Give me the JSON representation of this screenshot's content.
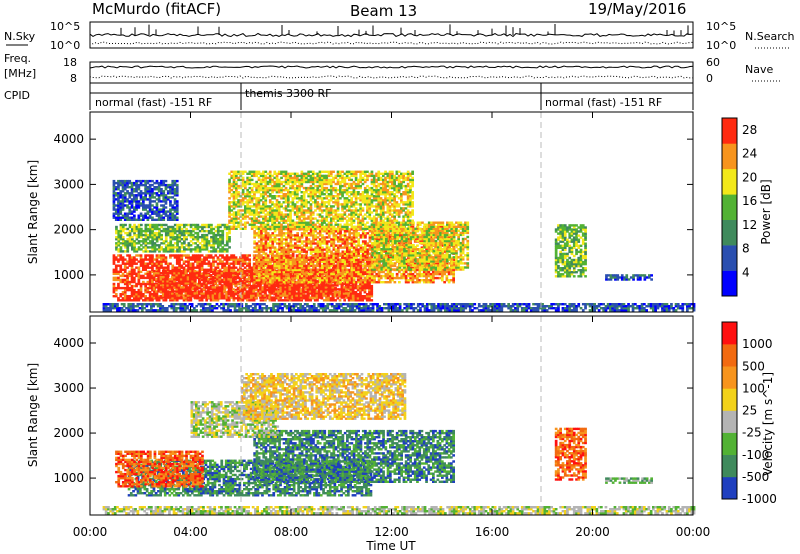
{
  "header": {
    "station": "McMurdo (fitACF)",
    "beam": "Beam 13",
    "date": "19/May/2016"
  },
  "status_panel": {
    "left_labels": [
      "N.Sky",
      "Freq.",
      "[MHz]",
      "CPID"
    ],
    "right_labels": [
      "N.Search",
      "Nave"
    ],
    "left_ticks_noise": [
      "10^5",
      "10^0"
    ],
    "right_ticks_noise": [
      "10^5",
      "10^0"
    ],
    "left_ticks_freq": [
      "18",
      "8"
    ],
    "right_ticks_nave": [
      "60",
      "0"
    ],
    "cpid_segments": [
      {
        "label": "normal (fast) -151 RF",
        "start_hr": 0,
        "end_hr": 6
      },
      {
        "label": "themis 3300 RF",
        "start_hr": 6,
        "end_hr": 18
      },
      {
        "label": "normal (fast) -151 RF",
        "start_hr": 18,
        "end_hr": 24
      }
    ]
  },
  "chart_data": [
    {
      "type": "heatmap",
      "title": "",
      "xlabel": "Time UT",
      "ylabel": "Slant Range [km]",
      "xlim": [
        0,
        24
      ],
      "ylim": [
        180,
        4600
      ],
      "x_ticks": [
        "00:00",
        "04:00",
        "08:00",
        "12:00",
        "16:00",
        "20:00",
        "00:00"
      ],
      "y_ticks": [
        1000,
        2000,
        3000,
        4000
      ],
      "colorbar": {
        "label": "Power [dB]",
        "ticks": [
          4,
          8,
          12,
          16,
          20,
          24,
          28
        ],
        "range": [
          0,
          30
        ],
        "colors": [
          "#0000ff",
          "#2a4fb0",
          "#3f8a5c",
          "#52b234",
          "#f3e81a",
          "#f7941d",
          "#ff2a10"
        ]
      },
      "regions": [
        {
          "t": [
            0.9,
            11.2
          ],
          "r": [
            420,
            1450
          ],
          "level": 6
        },
        {
          "t": [
            2.5,
            10.5
          ],
          "r": [
            480,
            1100
          ],
          "level": 6
        },
        {
          "t": [
            6.5,
            14.5
          ],
          "r": [
            820,
            2050
          ],
          "level": 5
        },
        {
          "t": [
            11.2,
            15.0
          ],
          "r": [
            1100,
            2150
          ],
          "level": 4
        },
        {
          "t": [
            1.0,
            5.5
          ],
          "r": [
            1500,
            2100
          ],
          "level": 3
        },
        {
          "t": [
            5.5,
            12.8
          ],
          "r": [
            2000,
            3300
          ],
          "level": 4
        },
        {
          "t": [
            0.9,
            3.5
          ],
          "r": [
            2200,
            3100
          ],
          "level": 1
        },
        {
          "t": [
            18.5,
            19.7
          ],
          "r": [
            950,
            2100
          ],
          "level": 3
        },
        {
          "t": [
            20.5,
            22.3
          ],
          "r": [
            880,
            1000
          ],
          "level": 1
        },
        {
          "t": [
            0.5,
            24.0
          ],
          "r": [
            200,
            380
          ],
          "level": 1
        }
      ]
    },
    {
      "type": "heatmap",
      "title": "",
      "xlabel": "Time UT",
      "ylabel": "Slant Range [km]",
      "xlim": [
        0,
        24
      ],
      "ylim": [
        180,
        4600
      ],
      "x_ticks": [
        "00:00",
        "04:00",
        "08:00",
        "12:00",
        "16:00",
        "20:00",
        "00:00"
      ],
      "y_ticks": [
        1000,
        2000,
        3000,
        4000
      ],
      "colorbar": {
        "label": "Velocity [m s^-1]",
        "ticks": [
          "1000",
          "500",
          "100",
          "25",
          "-25",
          "-100",
          "-500",
          "-1000"
        ],
        "colors": [
          "#1f3fbf",
          "#3f8a5c",
          "#52b234",
          "#b4b4b4",
          "#f3d21a",
          "#f7941d",
          "#f26a10",
          "#ff1010"
        ]
      },
      "regions": [
        {
          "t": [
            1.5,
            11.2
          ],
          "r": [
            600,
            1400
          ],
          "level": 1
        },
        {
          "t": [
            6.5,
            14.5
          ],
          "r": [
            900,
            2050
          ],
          "level": 1
        },
        {
          "t": [
            1.0,
            4.5
          ],
          "r": [
            800,
            1600
          ],
          "level": 6
        },
        {
          "t": [
            4.0,
            7.5
          ],
          "r": [
            1900,
            2700
          ],
          "level": 3
        },
        {
          "t": [
            6.0,
            12.5
          ],
          "r": [
            2300,
            3300
          ],
          "level": 4
        },
        {
          "t": [
            18.5,
            19.7
          ],
          "r": [
            950,
            2100
          ],
          "level": 6
        },
        {
          "t": [
            20.5,
            22.3
          ],
          "r": [
            880,
            1000
          ],
          "level": 2
        },
        {
          "t": [
            0.5,
            24.0
          ],
          "r": [
            200,
            380
          ],
          "level": 3
        }
      ]
    }
  ]
}
